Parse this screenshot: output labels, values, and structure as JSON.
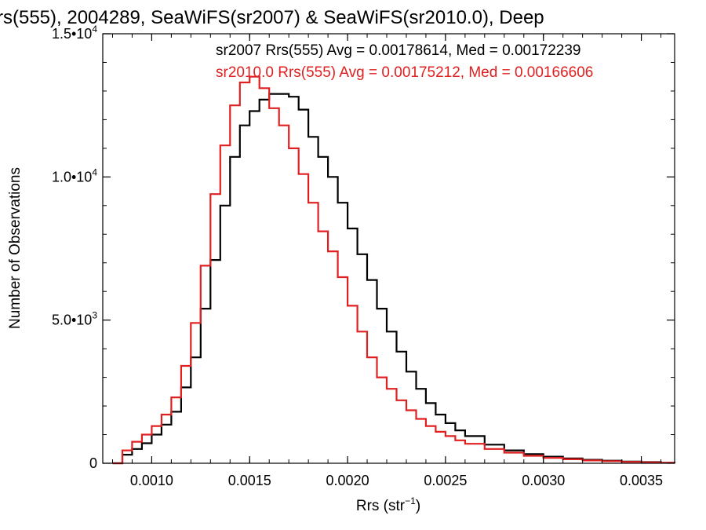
{
  "chart_data": {
    "type": "line",
    "title": "rs(555), 2004289, SeaWiFS(sr2007) & SeaWiFS(sr2010.0), Deep",
    "xlabel": "Rrs (str",
    "xlabel_sup": "−1",
    "xlabel_close": ")",
    "ylabel": "Number of Observations",
    "xlim": [
      0.00075,
      0.00367
    ],
    "ylim": [
      0,
      15000
    ],
    "xticks": [
      {
        "value": 0.001,
        "label": "0.0010"
      },
      {
        "value": 0.0015,
        "label": "0.0015"
      },
      {
        "value": 0.002,
        "label": "0.0020"
      },
      {
        "value": 0.0025,
        "label": "0.0025"
      },
      {
        "value": 0.003,
        "label": "0.0030"
      },
      {
        "value": 0.0035,
        "label": "0.0035"
      }
    ],
    "yticks": [
      {
        "value": 0,
        "mant": "0",
        "exp": ""
      },
      {
        "value": 5000,
        "mant": "5.0•10",
        "exp": "3"
      },
      {
        "value": 10000,
        "mant": "1.0•10",
        "exp": "4"
      },
      {
        "value": 15000,
        "mant": "1.5•10",
        "exp": "4"
      }
    ],
    "annotations": [
      "sr2007 Rrs(555) Avg = 0.00178614, Med = 0.00172239",
      "sr2010.0 Rrs(555) Avg = 0.00175212, Med = 0.00166606"
    ],
    "grid": false,
    "series": [
      {
        "color": "#000000",
        "x": [
          0.0008,
          0.00085,
          0.0009,
          0.00095,
          0.001,
          0.00105,
          0.0011,
          0.00115,
          0.0012,
          0.00125,
          0.0013,
          0.00135,
          0.0014,
          0.00145,
          0.0015,
          0.00155,
          0.0016,
          0.00165,
          0.0017,
          0.00175,
          0.0018,
          0.00185,
          0.0019,
          0.00195,
          0.002,
          0.00205,
          0.0021,
          0.00215,
          0.0022,
          0.00225,
          0.0023,
          0.00235,
          0.0024,
          0.00245,
          0.0025,
          0.00255,
          0.0026,
          0.0027,
          0.0028,
          0.0029,
          0.003,
          0.0031,
          0.0032,
          0.0033,
          0.0034,
          0.0035,
          0.0036,
          0.00367
        ],
        "y": [
          0,
          300,
          500,
          700,
          1000,
          1350,
          1800,
          2650,
          3700,
          5400,
          7100,
          9000,
          10700,
          11800,
          12300,
          12700,
          12900,
          12900,
          12800,
          12350,
          11400,
          10700,
          10000,
          9100,
          8200,
          7300,
          6400,
          5400,
          4600,
          3900,
          3200,
          2600,
          2100,
          1700,
          1400,
          1150,
          950,
          650,
          450,
          320,
          230,
          170,
          120,
          90,
          60,
          40,
          20,
          10
        ]
      },
      {
        "color": "#e02020",
        "x": [
          0.0008,
          0.00085,
          0.0009,
          0.00095,
          0.001,
          0.00105,
          0.0011,
          0.00115,
          0.0012,
          0.00125,
          0.0013,
          0.00135,
          0.0014,
          0.00145,
          0.0015,
          0.00155,
          0.0016,
          0.00165,
          0.0017,
          0.00175,
          0.0018,
          0.00185,
          0.0019,
          0.00195,
          0.002,
          0.00205,
          0.0021,
          0.00215,
          0.0022,
          0.00225,
          0.0023,
          0.00235,
          0.0024,
          0.00245,
          0.0025,
          0.00255,
          0.0026,
          0.0027,
          0.0028,
          0.0029,
          0.003,
          0.0031,
          0.0032,
          0.0033,
          0.0034,
          0.0035,
          0.0036,
          0.00367
        ],
        "y": [
          0,
          450,
          750,
          1000,
          1300,
          1700,
          2300,
          3400,
          4900,
          6900,
          9400,
          11100,
          12500,
          13300,
          13500,
          13100,
          12400,
          11800,
          11000,
          10100,
          9100,
          8100,
          7400,
          6500,
          5500,
          4600,
          3700,
          3000,
          2600,
          2200,
          1850,
          1550,
          1300,
          1100,
          950,
          800,
          680,
          500,
          370,
          260,
          190,
          140,
          100,
          75,
          50,
          30,
          20,
          10
        ]
      }
    ]
  }
}
